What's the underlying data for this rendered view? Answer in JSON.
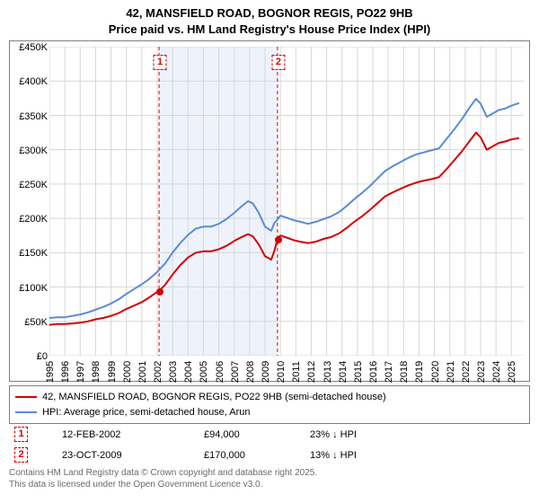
{
  "title": {
    "line1": "42, MANSFIELD ROAD, BOGNOR REGIS, PO22 9HB",
    "line2": "Price paid vs. HM Land Registry's House Price Index (HPI)",
    "fontsize": 13
  },
  "chart": {
    "type": "line",
    "background_color": "#ffffff",
    "grid_color": "#d7d7d7",
    "axis_color": "#808080",
    "label_fontsize": 11,
    "ylim": [
      0,
      450000
    ],
    "yticks": [
      0,
      50000,
      100000,
      150000,
      200000,
      250000,
      300000,
      350000,
      400000,
      450000
    ],
    "ytick_labels": [
      "£0",
      "£50K",
      "£100K",
      "£150K",
      "£200K",
      "£250K",
      "£300K",
      "£350K",
      "£400K",
      "£450K"
    ],
    "xlim": [
      1995,
      2025.8
    ],
    "xticks": [
      1995,
      1996,
      1997,
      1998,
      1999,
      2000,
      2001,
      2002,
      2003,
      2004,
      2005,
      2006,
      2007,
      2008,
      2009,
      2010,
      2011,
      2012,
      2013,
      2014,
      2015,
      2016,
      2017,
      2018,
      2019,
      2020,
      2021,
      2022,
      2023,
      2024,
      2025
    ],
    "xtick_labels": [
      "1995",
      "1996",
      "1997",
      "1998",
      "1999",
      "2000",
      "2001",
      "2002",
      "2003",
      "2004",
      "2005",
      "2006",
      "2007",
      "2008",
      "2009",
      "2010",
      "2011",
      "2012",
      "2013",
      "2014",
      "2015",
      "2016",
      "2017",
      "2018",
      "2019",
      "2020",
      "2021",
      "2022",
      "2023",
      "2024",
      "2025"
    ],
    "band": {
      "start": 2002.12,
      "end": 2009.81,
      "fill": "#eef3fb"
    },
    "sale_lines": [
      {
        "x": 2002.12,
        "color": "#d40000",
        "dash": "4 3"
      },
      {
        "x": 2009.81,
        "color": "#d40000",
        "dash": "4 3"
      }
    ],
    "markers": [
      {
        "id": "1",
        "x": 2002.12,
        "y": 94000,
        "color": "#d40000"
      },
      {
        "id": "2",
        "x": 2009.81,
        "y": 170000,
        "color": "#d40000"
      }
    ],
    "series": [
      {
        "name": "price_paid",
        "label": "42, MANSFIELD ROAD, BOGNOR REGIS, PO22 9HB (semi-detached house)",
        "color": "#d40000",
        "line_width": 2,
        "data": [
          [
            1995.0,
            45000
          ],
          [
            1995.5,
            46000
          ],
          [
            1996.0,
            46000
          ],
          [
            1996.5,
            47000
          ],
          [
            1997.0,
            48000
          ],
          [
            1997.5,
            50000
          ],
          [
            1998.0,
            53000
          ],
          [
            1998.5,
            55000
          ],
          [
            1999.0,
            58000
          ],
          [
            1999.5,
            62000
          ],
          [
            2000.0,
            68000
          ],
          [
            2000.5,
            73000
          ],
          [
            2001.0,
            78000
          ],
          [
            2001.5,
            85000
          ],
          [
            2002.0,
            93000
          ],
          [
            2002.12,
            94000
          ],
          [
            2002.5,
            103000
          ],
          [
            2003.0,
            118000
          ],
          [
            2003.5,
            132000
          ],
          [
            2004.0,
            143000
          ],
          [
            2004.5,
            150000
          ],
          [
            2005.0,
            152000
          ],
          [
            2005.5,
            152000
          ],
          [
            2006.0,
            155000
          ],
          [
            2006.5,
            160000
          ],
          [
            2007.0,
            167000
          ],
          [
            2007.5,
            173000
          ],
          [
            2007.9,
            177000
          ],
          [
            2008.2,
            174000
          ],
          [
            2008.6,
            162000
          ],
          [
            2009.0,
            145000
          ],
          [
            2009.4,
            140000
          ],
          [
            2009.6,
            152000
          ],
          [
            2009.81,
            170000
          ],
          [
            2010.0,
            175000
          ],
          [
            2010.4,
            172000
          ],
          [
            2010.9,
            168000
          ],
          [
            2011.3,
            166000
          ],
          [
            2011.8,
            164000
          ],
          [
            2012.3,
            166000
          ],
          [
            2012.8,
            170000
          ],
          [
            2013.3,
            173000
          ],
          [
            2013.8,
            178000
          ],
          [
            2014.3,
            186000
          ],
          [
            2014.8,
            195000
          ],
          [
            2015.3,
            203000
          ],
          [
            2015.8,
            212000
          ],
          [
            2016.3,
            222000
          ],
          [
            2016.8,
            232000
          ],
          [
            2017.3,
            238000
          ],
          [
            2017.8,
            243000
          ],
          [
            2018.3,
            248000
          ],
          [
            2018.8,
            252000
          ],
          [
            2019.3,
            255000
          ],
          [
            2019.8,
            257000
          ],
          [
            2020.3,
            260000
          ],
          [
            2020.8,
            272000
          ],
          [
            2021.3,
            285000
          ],
          [
            2021.8,
            298000
          ],
          [
            2022.3,
            313000
          ],
          [
            2022.7,
            325000
          ],
          [
            2023.0,
            318000
          ],
          [
            2023.4,
            300000
          ],
          [
            2023.8,
            305000
          ],
          [
            2024.2,
            310000
          ],
          [
            2024.6,
            312000
          ],
          [
            2025.0,
            315000
          ],
          [
            2025.5,
            317000
          ]
        ]
      },
      {
        "name": "hpi",
        "label": "HPI: Average price, semi-detached house, Arun",
        "color": "#5a8bd6",
        "line_width": 2,
        "data": [
          [
            1995.0,
            55000
          ],
          [
            1995.5,
            56000
          ],
          [
            1996.0,
            56000
          ],
          [
            1996.5,
            58000
          ],
          [
            1997.0,
            60000
          ],
          [
            1997.5,
            63000
          ],
          [
            1998.0,
            67000
          ],
          [
            1998.5,
            71000
          ],
          [
            1999.0,
            76000
          ],
          [
            1999.5,
            82000
          ],
          [
            2000.0,
            90000
          ],
          [
            2000.5,
            97000
          ],
          [
            2001.0,
            104000
          ],
          [
            2001.5,
            112000
          ],
          [
            2002.0,
            122000
          ],
          [
            2002.5,
            134000
          ],
          [
            2003.0,
            150000
          ],
          [
            2003.5,
            164000
          ],
          [
            2004.0,
            176000
          ],
          [
            2004.5,
            185000
          ],
          [
            2005.0,
            188000
          ],
          [
            2005.5,
            188000
          ],
          [
            2006.0,
            192000
          ],
          [
            2006.5,
            199000
          ],
          [
            2007.0,
            208000
          ],
          [
            2007.5,
            218000
          ],
          [
            2007.9,
            225000
          ],
          [
            2008.2,
            222000
          ],
          [
            2008.6,
            208000
          ],
          [
            2009.0,
            188000
          ],
          [
            2009.4,
            182000
          ],
          [
            2009.6,
            193000
          ],
          [
            2009.81,
            198000
          ],
          [
            2010.0,
            204000
          ],
          [
            2010.4,
            201000
          ],
          [
            2010.9,
            197000
          ],
          [
            2011.3,
            195000
          ],
          [
            2011.8,
            192000
          ],
          [
            2012.3,
            195000
          ],
          [
            2012.8,
            199000
          ],
          [
            2013.3,
            203000
          ],
          [
            2013.8,
            209000
          ],
          [
            2014.3,
            218000
          ],
          [
            2014.8,
            228000
          ],
          [
            2015.3,
            237000
          ],
          [
            2015.8,
            247000
          ],
          [
            2016.3,
            258000
          ],
          [
            2016.8,
            269000
          ],
          [
            2017.3,
            276000
          ],
          [
            2017.8,
            282000
          ],
          [
            2018.3,
            288000
          ],
          [
            2018.8,
            293000
          ],
          [
            2019.3,
            296000
          ],
          [
            2019.8,
            299000
          ],
          [
            2020.3,
            302000
          ],
          [
            2020.8,
            316000
          ],
          [
            2021.3,
            330000
          ],
          [
            2021.8,
            345000
          ],
          [
            2022.3,
            362000
          ],
          [
            2022.7,
            374000
          ],
          [
            2023.0,
            367000
          ],
          [
            2023.4,
            348000
          ],
          [
            2023.8,
            353000
          ],
          [
            2024.2,
            358000
          ],
          [
            2024.6,
            360000
          ],
          [
            2025.0,
            364000
          ],
          [
            2025.5,
            368000
          ]
        ]
      }
    ]
  },
  "legend": {
    "rows": [
      {
        "color": "#d40000",
        "label": "42, MANSFIELD ROAD, BOGNOR REGIS, PO22 9HB (semi-detached house)"
      },
      {
        "color": "#5a8bd6",
        "label": "HPI: Average price, semi-detached house, Arun"
      }
    ]
  },
  "sales": [
    {
      "id": "1",
      "date": "12-FEB-2002",
      "price": "£94,000",
      "diff": "23% ↓ HPI"
    },
    {
      "id": "2",
      "date": "23-OCT-2009",
      "price": "£170,000",
      "diff": "13% ↓ HPI"
    }
  ],
  "attribution": {
    "line1": "Contains HM Land Registry data © Crown copyright and database right 2025.",
    "line2": "This data is licensed under the Open Government Licence v3.0."
  }
}
